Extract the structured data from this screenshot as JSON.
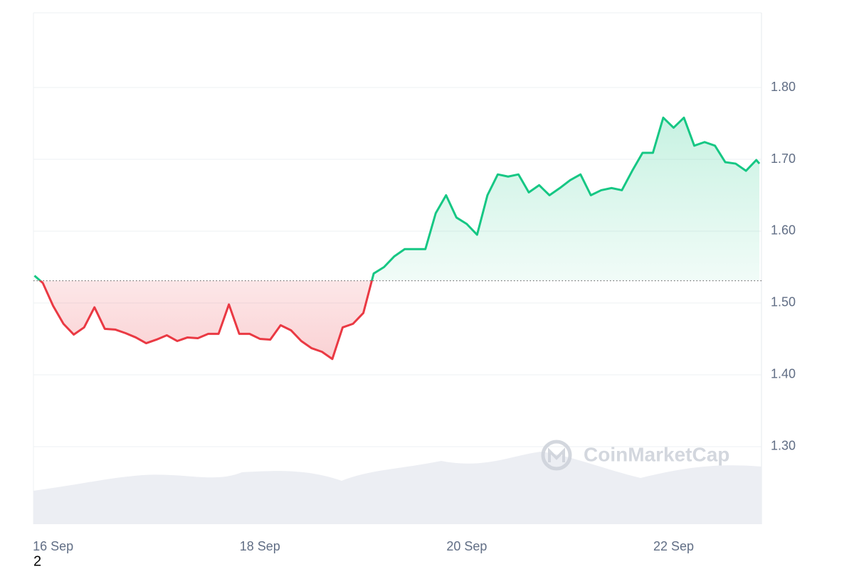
{
  "chart_data": {
    "type": "line",
    "x": [
      15.82,
      15.9,
      16.0,
      16.1,
      16.2,
      16.3,
      16.4,
      16.5,
      16.6,
      16.7,
      16.8,
      16.9,
      17.0,
      17.1,
      17.2,
      17.3,
      17.4,
      17.5,
      17.6,
      17.7,
      17.8,
      17.9,
      18.0,
      18.1,
      18.2,
      18.3,
      18.4,
      18.5,
      18.6,
      18.7,
      18.8,
      18.9,
      19.0,
      19.1,
      19.2,
      19.3,
      19.4,
      19.5,
      19.6,
      19.7,
      19.8,
      19.9,
      20.0,
      20.1,
      20.2,
      20.3,
      20.4,
      20.5,
      20.6,
      20.7,
      20.8,
      20.9,
      21.0,
      21.1,
      21.2,
      21.3,
      21.4,
      21.5,
      21.6,
      21.7,
      21.8,
      21.9,
      22.0,
      22.1,
      22.2,
      22.3,
      22.4,
      22.5,
      22.6,
      22.7,
      22.8,
      22.83
    ],
    "values": [
      1.538,
      1.528,
      1.496,
      1.471,
      1.456,
      1.466,
      1.494,
      1.464,
      1.463,
      1.458,
      1.452,
      1.444,
      1.449,
      1.455,
      1.447,
      1.452,
      1.451,
      1.457,
      1.457,
      1.498,
      1.457,
      1.457,
      1.45,
      1.449,
      1.469,
      1.462,
      1.447,
      1.437,
      1.432,
      1.422,
      1.466,
      1.471,
      1.486,
      1.541,
      1.55,
      1.565,
      1.575,
      1.575,
      1.575,
      1.625,
      1.65,
      1.619,
      1.61,
      1.595,
      1.65,
      1.679,
      1.676,
      1.679,
      1.654,
      1.664,
      1.65,
      1.66,
      1.671,
      1.679,
      1.65,
      1.657,
      1.66,
      1.657,
      1.684,
      1.709,
      1.709,
      1.758,
      1.744,
      1.758,
      1.719,
      1.724,
      1.719,
      1.696,
      1.694,
      1.684,
      1.699,
      1.694
    ],
    "baseline": 1.531,
    "up_color": "#16c784",
    "down_color": "#ea3943",
    "xlim": [
      15.81,
      22.85
    ],
    "xticks": [
      {
        "value": 16,
        "label": "16 Sep"
      },
      {
        "value": 18,
        "label": "18 Sep"
      },
      {
        "value": 20,
        "label": "20 Sep"
      },
      {
        "value": 22,
        "label": "22 Sep"
      }
    ],
    "ylim": [
      1.192,
      1.904
    ],
    "yticks": [
      {
        "value": 1.3,
        "label": "1.30"
      },
      {
        "value": 1.4,
        "label": "1.40"
      },
      {
        "value": 1.5,
        "label": "1.50"
      },
      {
        "value": 1.6,
        "label": "1.60"
      },
      {
        "value": 1.7,
        "label": "1.70"
      },
      {
        "value": 1.8,
        "label": "1.80"
      }
    ],
    "grid": true,
    "watermark": "CoinMarketCap",
    "footnote": "2"
  }
}
